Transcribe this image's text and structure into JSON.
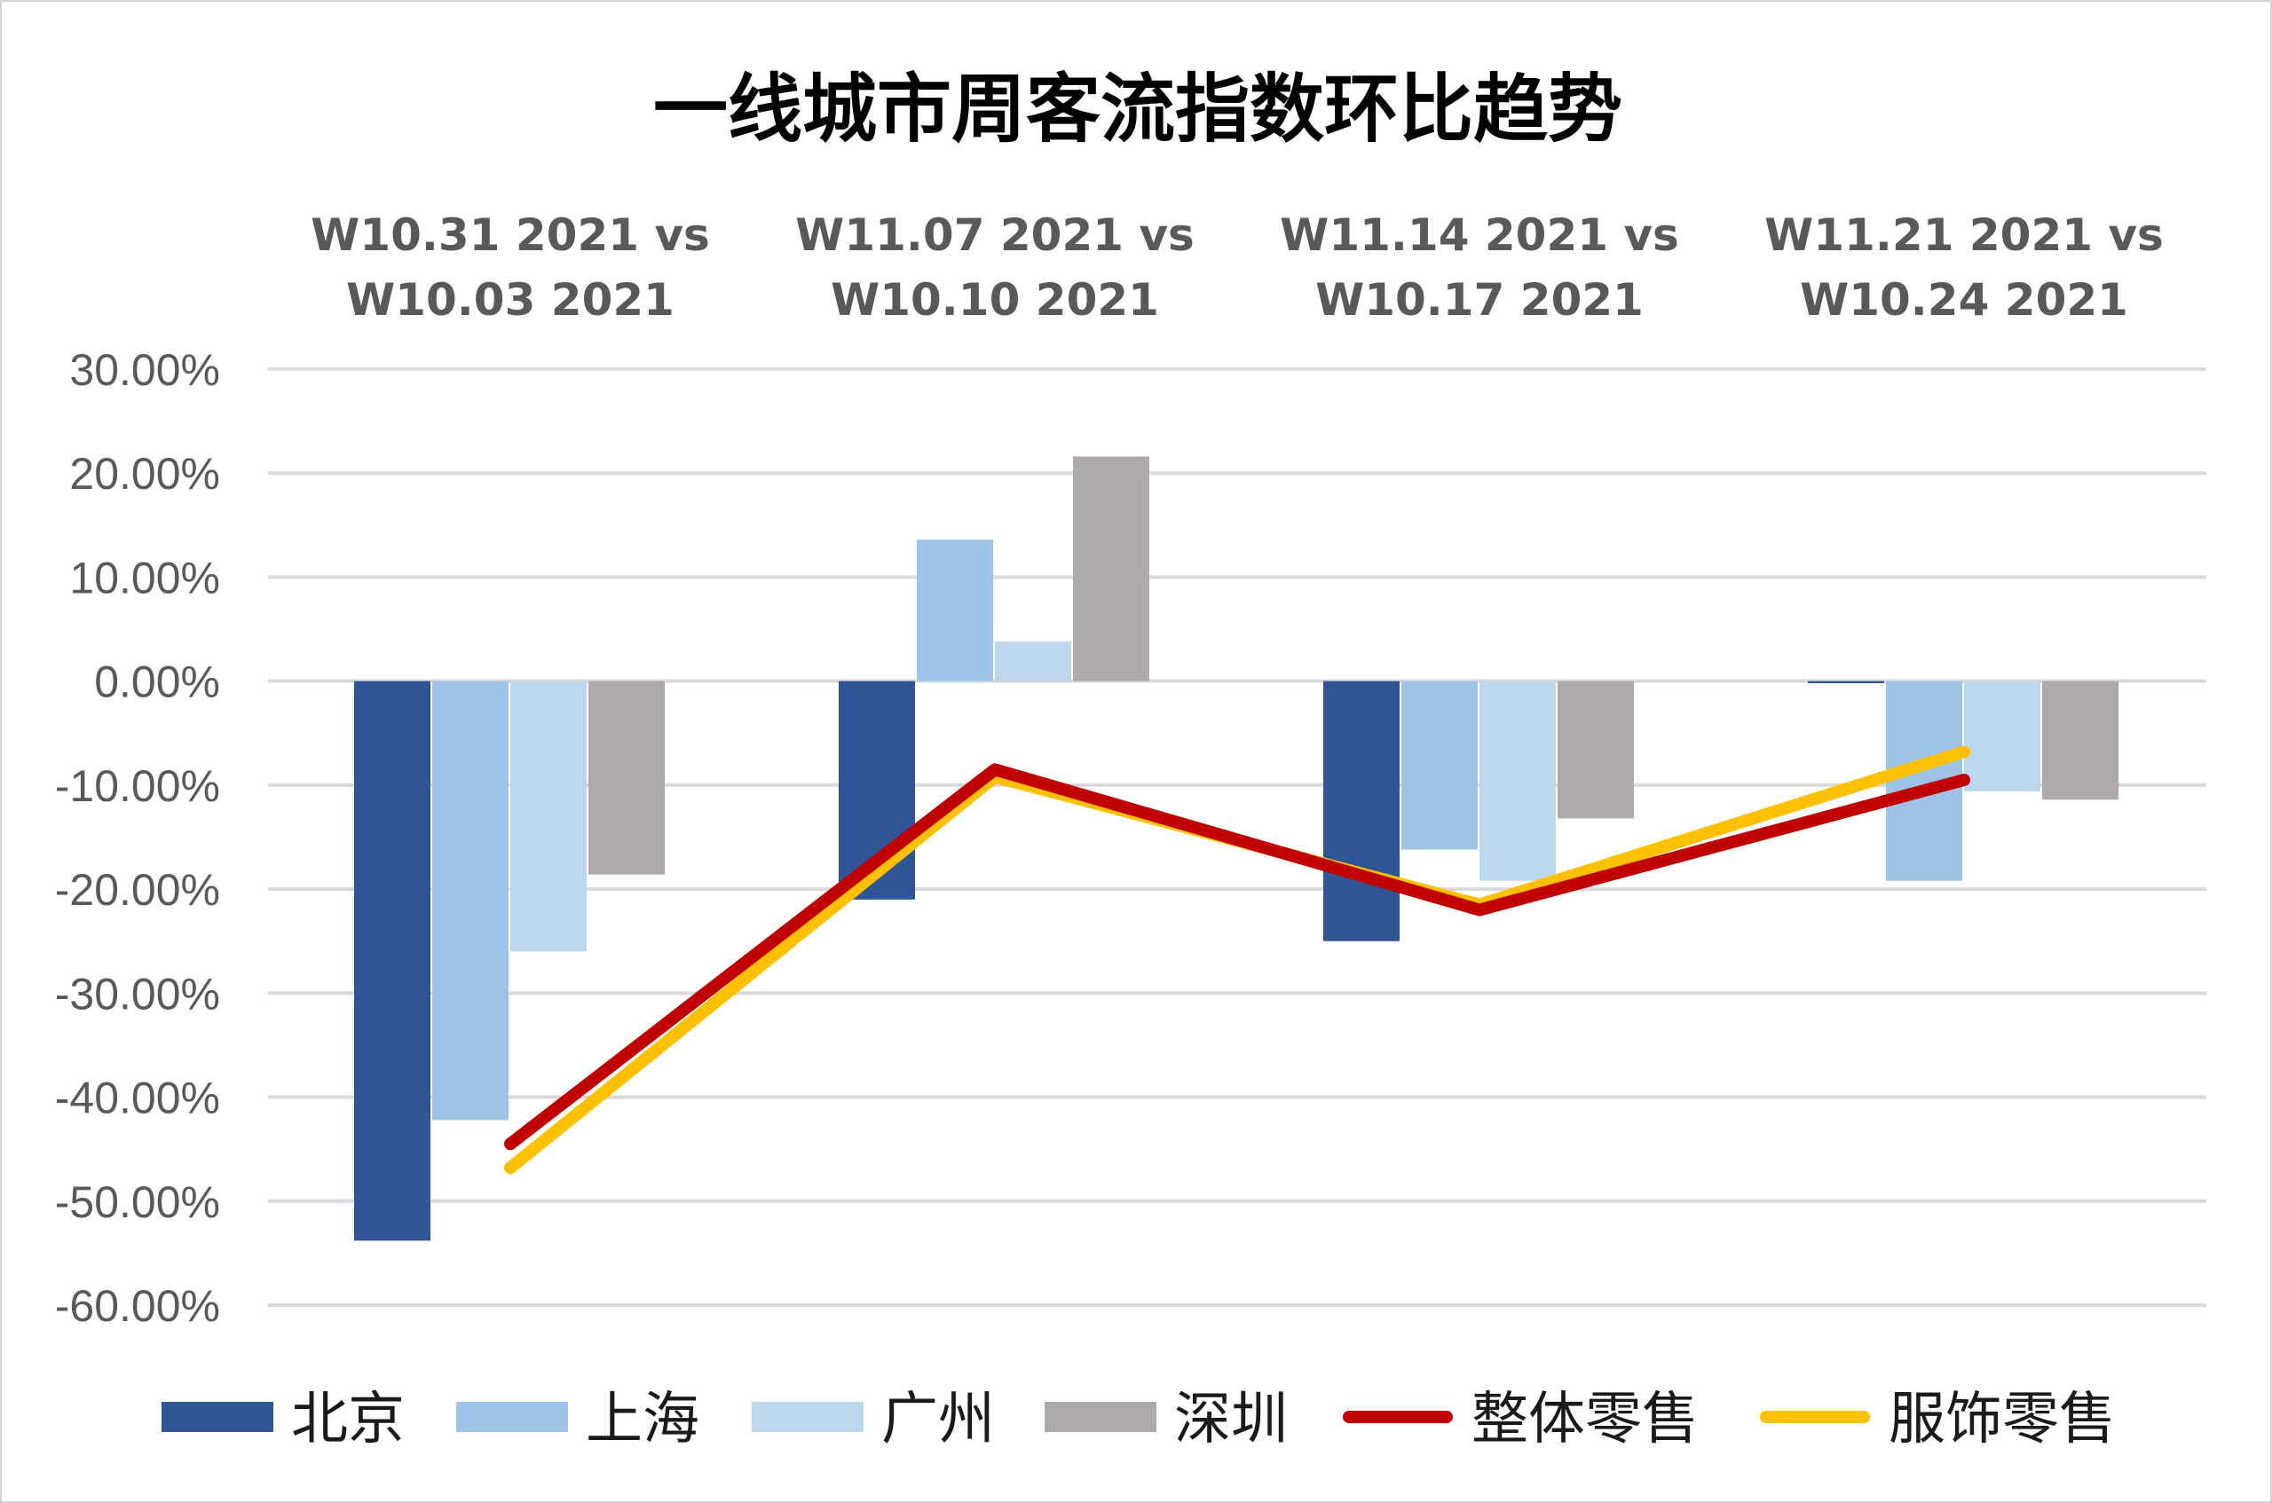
{
  "chart_data": {
    "type": "bar",
    "title": "一线城市周客流指数环比趋势",
    "categories": [
      [
        "W10.31 2021  vs",
        "W10.03 2021"
      ],
      [
        "W11.07 2021  vs",
        "W10.10 2021"
      ],
      [
        "W11.14 2021  vs",
        "W10.17 2021"
      ],
      [
        "W11.21 2021  vs",
        "W10.24 2021"
      ]
    ],
    "ylim": [
      -60,
      30
    ],
    "yticks": [
      30,
      20,
      10,
      0,
      -10,
      -20,
      -30,
      -40,
      -50,
      -60
    ],
    "ytick_labels": [
      "30.00%",
      "20.00%",
      "10.00%",
      "0.00%",
      "-10.00%",
      "-20.00%",
      "-30.00%",
      "-40.00%",
      "-50.00%",
      "-60.00%"
    ],
    "grid": true,
    "legend_position": "bottom",
    "bar_series": [
      {
        "name": "北京",
        "color": "#2f5597",
        "values": [
          -53.8,
          -21.0,
          -25.0,
          -0.2
        ]
      },
      {
        "name": "上海",
        "color": "#9dc3e6",
        "values": [
          -42.2,
          13.6,
          -16.2,
          -19.2
        ]
      },
      {
        "name": "广州",
        "color": "#bdd7ee",
        "values": [
          -26.0,
          3.8,
          -19.2,
          -10.6
        ]
      },
      {
        "name": "深圳",
        "color": "#aeaaaa",
        "values": [
          -18.6,
          21.6,
          -13.2,
          -11.4
        ]
      }
    ],
    "line_series": [
      {
        "name": "整体零售",
        "color": "#c00000",
        "values": [
          -44.5,
          -8.5,
          -22.0,
          -9.5
        ]
      },
      {
        "name": "服饰零售",
        "color": "#ffc000",
        "values": [
          -46.8,
          -9.2,
          -21.5,
          -6.8
        ]
      }
    ]
  }
}
